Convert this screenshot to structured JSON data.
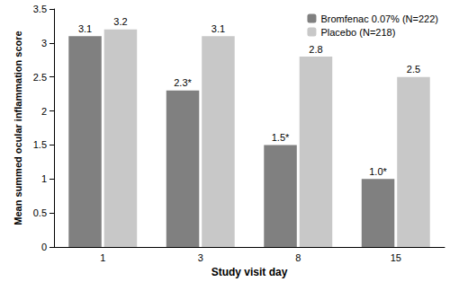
{
  "chart_data": {
    "type": "bar",
    "x_label": "Study visit day",
    "y_label": "Mean summed ocular inflammation score",
    "categories": [
      "1",
      "3",
      "8",
      "15"
    ],
    "series": [
      {
        "name": "Bromfenac 0.07% (N=222)",
        "color": "#808080",
        "values": [
          3.1,
          2.3,
          1.5,
          1.0
        ],
        "value_labels": [
          "3.1",
          "2.3*",
          "1.5*",
          "1.0*"
        ]
      },
      {
        "name": "Placebo (N=218)",
        "color": "#c8c8c8",
        "values": [
          3.2,
          3.1,
          2.8,
          2.5
        ]
      }
    ],
    "ylim": [
      0,
      3.5
    ],
    "yticks": [
      0,
      0.5,
      1,
      1.5,
      2,
      2.5,
      3,
      3.5
    ],
    "grid": false,
    "legend": "top-right",
    "data_labels": true
  }
}
